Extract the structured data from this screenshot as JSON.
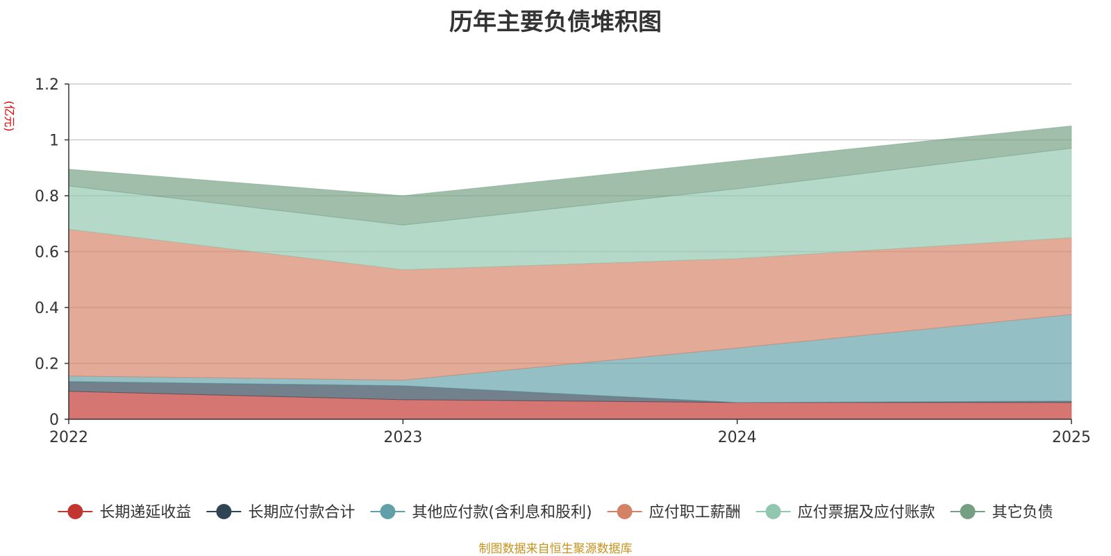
{
  "chart_data": {
    "type": "area",
    "stacked": true,
    "title": "历年主要负债堆积图",
    "unit": "(亿元)",
    "source": "制图数据来自恒生聚源数据库",
    "categories": [
      "2022",
      "2023",
      "2024",
      "2025"
    ],
    "ylim": [
      0,
      1.2
    ],
    "yticks": [
      0,
      0.2,
      0.4,
      0.6,
      0.8,
      1,
      1.2
    ],
    "ytick_labels": [
      "0",
      "0.2",
      "0.4",
      "0.6",
      "0.8",
      "1",
      "1.2"
    ],
    "grid": true,
    "legend_position": "bottom",
    "series": [
      {
        "name": "长期递延收益",
        "color": "#c23531",
        "values": [
          0.1,
          0.07,
          0.06,
          0.06
        ]
      },
      {
        "name": "长期应付款合计",
        "color": "#2f4554",
        "values": [
          0.035,
          0.05,
          0.0,
          0.005
        ]
      },
      {
        "name": "其他应付款(含利息和股利)",
        "color": "#61a0a8",
        "values": [
          0.02,
          0.02,
          0.195,
          0.31
        ]
      },
      {
        "name": "应付职工薪酬",
        "color": "#d48265",
        "values": [
          0.525,
          0.395,
          0.32,
          0.275
        ]
      },
      {
        "name": "应付票据及应付账款",
        "color": "#91c7ae",
        "values": [
          0.155,
          0.16,
          0.25,
          0.32
        ]
      },
      {
        "name": "其它负债",
        "color": "#749f83",
        "values": [
          0.06,
          0.105,
          0.1,
          0.08
        ]
      }
    ]
  }
}
